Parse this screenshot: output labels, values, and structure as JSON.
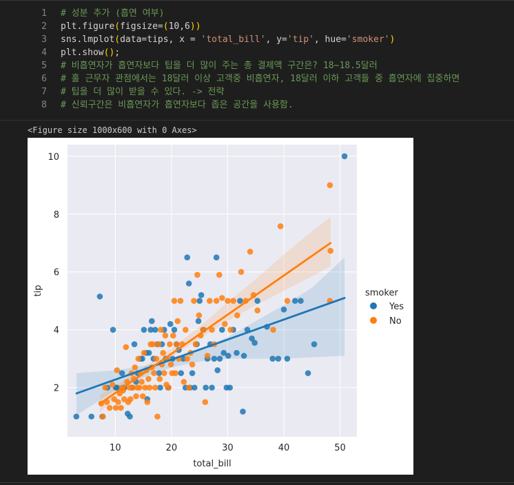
{
  "code_cell": {
    "lines": [
      {
        "num": "1",
        "segments": [
          {
            "t": "# 성분 추가 (흡연 여부)",
            "c": "comment"
          }
        ]
      },
      {
        "num": "2",
        "segments": [
          {
            "t": "plt.figure",
            "c": "plain"
          },
          {
            "t": "(",
            "c": "paren"
          },
          {
            "t": "figsize=",
            "c": "plain"
          },
          {
            "t": "(",
            "c": "paren"
          },
          {
            "t": "10,6",
            "c": "plain"
          },
          {
            "t": "))",
            "c": "paren"
          }
        ]
      },
      {
        "num": "3",
        "segments": [
          {
            "t": "sns.lmplot",
            "c": "plain"
          },
          {
            "t": "(",
            "c": "paren"
          },
          {
            "t": "data=tips, x = ",
            "c": "plain"
          },
          {
            "t": "'total_bill'",
            "c": "str"
          },
          {
            "t": ", y=",
            "c": "plain"
          },
          {
            "t": "'tip'",
            "c": "str"
          },
          {
            "t": ", hue=",
            "c": "plain"
          },
          {
            "t": "'smoker'",
            "c": "str"
          },
          {
            "t": ")",
            "c": "paren"
          }
        ]
      },
      {
        "num": "4",
        "segments": [
          {
            "t": "plt.show",
            "c": "plain"
          },
          {
            "t": "()",
            "c": "paren"
          },
          {
            "t": ";",
            "c": "plain"
          }
        ]
      },
      {
        "num": "5",
        "segments": [
          {
            "t": "# 비흡연자가 흡연자보다 팁을 더 많이 주는 총 결제액 구간은? 18~18.5달러",
            "c": "comment"
          }
        ]
      },
      {
        "num": "6",
        "segments": [
          {
            "t": "# 홀 근무자 관점에서는 18달러 이상 고객중 비흡연자, 18달러 이하 고객들 중 흡연자에 집중하면",
            "c": "comment"
          }
        ]
      },
      {
        "num": "7",
        "segments": [
          {
            "t": "# 팁을 더 많이 받을 수 있다. -> 전략",
            "c": "comment"
          }
        ]
      },
      {
        "num": "8",
        "segments": [
          {
            "t": "# 신뢰구간은 비흡연자가 흡연자보다 좁은 공간을 사용함.",
            "c": "comment"
          }
        ]
      }
    ]
  },
  "output": {
    "text": "<Figure size 1000x600 with 0 Axes>"
  },
  "colors": {
    "yes": "#1f77b4",
    "no": "#ff7f0e",
    "axes_bg": "#eaeaf2",
    "grid": "#ffffff"
  },
  "chart_data": {
    "type": "scatter",
    "xlabel": "total_bill",
    "ylabel": "tip",
    "xlim": [
      1.5,
      53
    ],
    "ylim": [
      0.3,
      10.4
    ],
    "xticks": [
      10,
      20,
      30,
      40,
      50
    ],
    "yticks": [
      2,
      4,
      6,
      8,
      10
    ],
    "grid": true,
    "legend": {
      "title": "smoker",
      "position": "right",
      "entries": [
        "Yes",
        "No"
      ]
    },
    "series": [
      {
        "name": "Yes",
        "color": "#1f77b4",
        "regression": {
          "x": [
            3.1,
            50.8
          ],
          "y": [
            1.8,
            5.1
          ]
        },
        "ci_band": {
          "x": [
            3.1,
            10,
            15,
            20,
            25,
            30,
            35,
            40,
            45,
            50.8
          ],
          "lower": [
            1.05,
            1.9,
            2.35,
            2.7,
            2.9,
            3.0,
            3.0,
            3.0,
            3.05,
            3.1
          ],
          "upper": [
            2.5,
            2.6,
            2.75,
            2.95,
            3.3,
            3.75,
            4.3,
            4.85,
            5.45,
            6.5
          ]
        },
        "points": [
          [
            3.07,
            1.0
          ],
          [
            5.75,
            1.0
          ],
          [
            7.25,
            5.15
          ],
          [
            7.7,
            1.0
          ],
          [
            8.6,
            2.0
          ],
          [
            9.6,
            4.0
          ],
          [
            10.1,
            2.0
          ],
          [
            10.3,
            2.0
          ],
          [
            11.2,
            2.5
          ],
          [
            11.6,
            2.0
          ],
          [
            12.2,
            1.1
          ],
          [
            12.6,
            1.0
          ],
          [
            13.0,
            2.0
          ],
          [
            13.4,
            3.5
          ],
          [
            13.7,
            2.2
          ],
          [
            14.0,
            2.5
          ],
          [
            14.5,
            3.0
          ],
          [
            14.8,
            3.0
          ],
          [
            15.1,
            4.0
          ],
          [
            15.5,
            3.2
          ],
          [
            15.7,
            1.6
          ],
          [
            16.0,
            3.2
          ],
          [
            16.3,
            4.0
          ],
          [
            16.5,
            4.3
          ],
          [
            16.8,
            3.0
          ],
          [
            17.1,
            4.0
          ],
          [
            17.5,
            3.5
          ],
          [
            17.8,
            2.5
          ],
          [
            18.0,
            2.0
          ],
          [
            18.3,
            3.5
          ],
          [
            18.7,
            4.0
          ],
          [
            19.0,
            3.0
          ],
          [
            19.4,
            2.0
          ],
          [
            19.8,
            4.2
          ],
          [
            20.2,
            3.0
          ],
          [
            20.5,
            4.0
          ],
          [
            20.9,
            3.5
          ],
          [
            21.3,
            3.3
          ],
          [
            21.7,
            2.5
          ],
          [
            22.1,
            3.0
          ],
          [
            22.5,
            2.0
          ],
          [
            22.8,
            6.5
          ],
          [
            23.1,
            5.6
          ],
          [
            23.3,
            2.0
          ],
          [
            23.7,
            2.5
          ],
          [
            24.1,
            2.0
          ],
          [
            24.5,
            3.5
          ],
          [
            24.8,
            4.3
          ],
          [
            25.0,
            5.0
          ],
          [
            25.3,
            5.2
          ],
          [
            25.7,
            4.0
          ],
          [
            26.1,
            2.0
          ],
          [
            26.4,
            3.0
          ],
          [
            26.9,
            3.5
          ],
          [
            27.2,
            2.0
          ],
          [
            27.6,
            3.0
          ],
          [
            28.0,
            6.5
          ],
          [
            28.2,
            2.6
          ],
          [
            28.6,
            3.0
          ],
          [
            29.0,
            4.0
          ],
          [
            29.3,
            3.2
          ],
          [
            29.8,
            2.0
          ],
          [
            30.1,
            3.1
          ],
          [
            30.4,
            2.0
          ],
          [
            31.0,
            4.0
          ],
          [
            31.6,
            3.2
          ],
          [
            32.2,
            5.0
          ],
          [
            32.7,
            1.17
          ],
          [
            32.9,
            3.1
          ],
          [
            33.5,
            4.0
          ],
          [
            34.3,
            3.7
          ],
          [
            34.8,
            3.55
          ],
          [
            35.3,
            5.0
          ],
          [
            37.0,
            4.1
          ],
          [
            38.0,
            3.0
          ],
          [
            39.0,
            3.0
          ],
          [
            40.0,
            4.7
          ],
          [
            40.6,
            3.0
          ],
          [
            42.0,
            5.0
          ],
          [
            43.0,
            5.0
          ],
          [
            44.3,
            2.5
          ],
          [
            45.4,
            3.5
          ],
          [
            50.8,
            10.0
          ]
        ]
      },
      {
        "name": "No",
        "color": "#ff7f0e",
        "regression": {
          "x": [
            7.3,
            48.3
          ],
          "y": [
            1.45,
            7.0
          ]
        },
        "ci_band": {
          "x": [
            7.3,
            10,
            15,
            20,
            25,
            30,
            35,
            40,
            45,
            48.3
          ],
          "lower": [
            1.15,
            1.65,
            2.4,
            3.05,
            3.7,
            4.3,
            4.85,
            5.35,
            5.85,
            6.2
          ],
          "upper": [
            1.75,
            2.05,
            2.7,
            3.35,
            4.1,
            4.95,
            5.75,
            6.6,
            7.4,
            7.9
          ]
        },
        "points": [
          [
            7.5,
            1.45
          ],
          [
            7.8,
            1.0
          ],
          [
            8.2,
            2.0
          ],
          [
            8.5,
            1.5
          ],
          [
            9.0,
            1.3
          ],
          [
            9.5,
            2.1
          ],
          [
            9.8,
            1.6
          ],
          [
            10.1,
            1.3
          ],
          [
            10.3,
            2.6
          ],
          [
            10.5,
            1.5
          ],
          [
            10.8,
            1.8
          ],
          [
            11.0,
            1.3
          ],
          [
            11.2,
            2.0
          ],
          [
            11.4,
            1.9
          ],
          [
            11.6,
            1.6
          ],
          [
            11.9,
            3.4
          ],
          [
            12.1,
            2.2
          ],
          [
            12.3,
            1.5
          ],
          [
            12.5,
            2.0
          ],
          [
            12.7,
            1.6
          ],
          [
            12.9,
            2.5
          ],
          [
            13.1,
            2.0
          ],
          [
            13.3,
            2.3
          ],
          [
            13.5,
            2.7
          ],
          [
            13.7,
            1.7
          ],
          [
            13.9,
            2.0
          ],
          [
            14.1,
            3.0
          ],
          [
            14.3,
            2.0
          ],
          [
            14.5,
            2.5
          ],
          [
            14.7,
            2.2
          ],
          [
            14.9,
            1.7
          ],
          [
            15.1,
            3.2
          ],
          [
            15.3,
            2.0
          ],
          [
            15.5,
            2.6
          ],
          [
            15.7,
            1.5
          ],
          [
            15.9,
            2.3
          ],
          [
            16.1,
            2.0
          ],
          [
            16.3,
            3.5
          ],
          [
            16.5,
            2.7
          ],
          [
            16.7,
            3.5
          ],
          [
            16.9,
            2.5
          ],
          [
            17.1,
            2.0
          ],
          [
            17.3,
            3.0
          ],
          [
            17.5,
            1.0
          ],
          [
            17.7,
            3.5
          ],
          [
            17.9,
            2.3
          ],
          [
            18.1,
            4.0
          ],
          [
            18.3,
            2.8
          ],
          [
            18.5,
            3.2
          ],
          [
            18.7,
            2.5
          ],
          [
            18.9,
            3.8
          ],
          [
            19.1,
            2.1
          ],
          [
            19.3,
            3.0
          ],
          [
            19.5,
            2.0
          ],
          [
            19.7,
            3.5
          ],
          [
            19.9,
            2.8
          ],
          [
            20.1,
            2.5
          ],
          [
            20.3,
            3.8
          ],
          [
            20.5,
            5.0
          ],
          [
            20.7,
            2.5
          ],
          [
            20.9,
            3.5
          ],
          [
            21.1,
            4.3
          ],
          [
            21.3,
            3.0
          ],
          [
            21.6,
            5.0
          ],
          [
            21.9,
            3.5
          ],
          [
            22.2,
            2.2
          ],
          [
            22.5,
            4.0
          ],
          [
            22.8,
            3.0
          ],
          [
            23.1,
            2.0
          ],
          [
            23.4,
            3.2
          ],
          [
            23.7,
            2.8
          ],
          [
            24.0,
            5.0
          ],
          [
            24.3,
            3.5
          ],
          [
            24.6,
            5.9
          ],
          [
            24.9,
            4.5
          ],
          [
            25.2,
            3.8
          ],
          [
            25.6,
            4.0
          ],
          [
            26.0,
            1.5
          ],
          [
            26.4,
            3.1
          ],
          [
            26.8,
            5.0
          ],
          [
            27.2,
            4.0
          ],
          [
            27.6,
            3.5
          ],
          [
            28.0,
            5.0
          ],
          [
            28.5,
            5.9
          ],
          [
            29.0,
            5.1
          ],
          [
            29.5,
            4.2
          ],
          [
            30.0,
            5.0
          ],
          [
            30.5,
            4.0
          ],
          [
            31.0,
            5.0
          ],
          [
            31.7,
            4.5
          ],
          [
            32.4,
            6.0
          ],
          [
            33.2,
            5.0
          ],
          [
            34.0,
            6.7
          ],
          [
            34.6,
            5.2
          ],
          [
            35.3,
            4.67
          ],
          [
            38.1,
            4.0
          ],
          [
            39.4,
            7.58
          ],
          [
            40.6,
            5.0
          ],
          [
            48.2,
            9.0
          ],
          [
            48.3,
            6.73
          ],
          [
            48.2,
            5.0
          ]
        ]
      }
    ]
  }
}
